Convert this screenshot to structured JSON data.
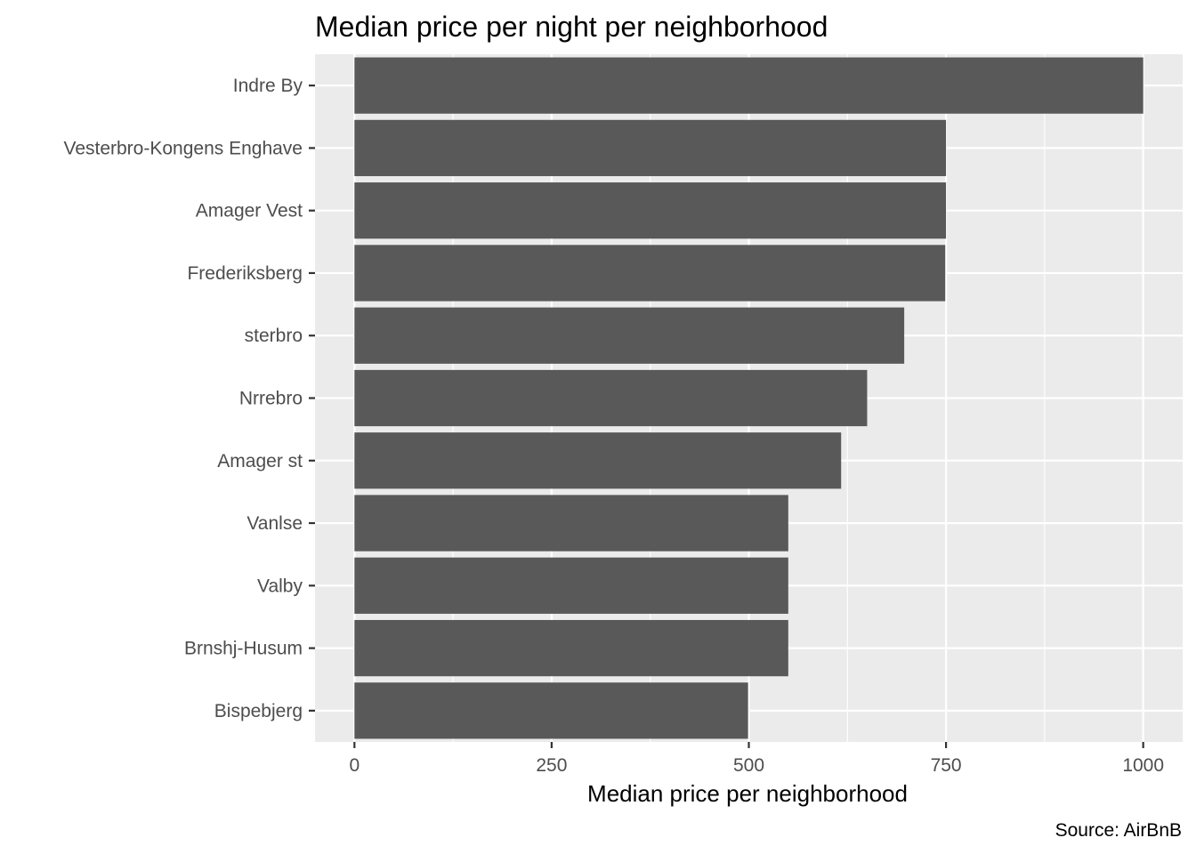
{
  "chart_data": {
    "type": "bar",
    "orientation": "horizontal",
    "title": "Median price per night per neighborhood",
    "xlabel": "Median price per neighborhood",
    "ylabel": "",
    "caption": "Source: AirBnB",
    "categories": [
      "Indre By",
      "Vesterbro-Kongens Enghave",
      "Amager Vest",
      "Frederiksberg",
      "sterbro",
      "Nrrebro",
      "Amager st",
      "Vanlse",
      "Valby",
      "Brnshj-Husum",
      "Bispebjerg"
    ],
    "values": [
      1000,
      750,
      750,
      749,
      697,
      650,
      617,
      550,
      550,
      550,
      499
    ],
    "xlim": [
      -50,
      1050
    ],
    "xticks": [
      0,
      250,
      500,
      750,
      1000
    ],
    "xtick_labels": [
      "0",
      "250",
      "500",
      "750",
      "1000"
    ],
    "bar_color": "#595959",
    "panel_background": "#ebebeb",
    "grid": true,
    "legend": "none"
  }
}
